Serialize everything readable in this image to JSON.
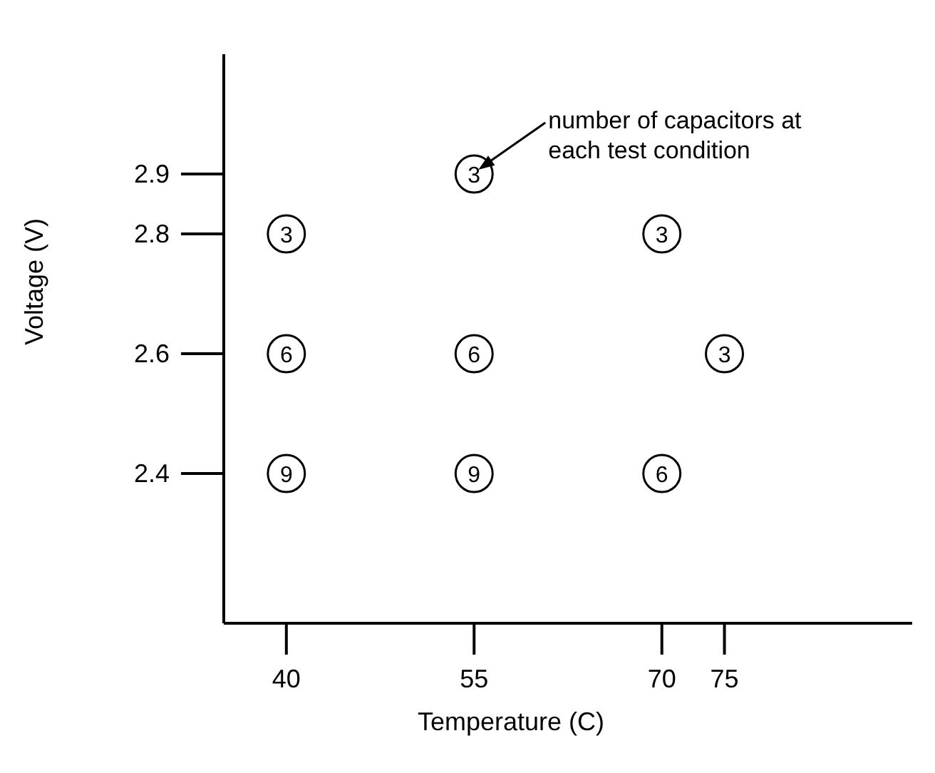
{
  "chart_data": {
    "type": "scatter",
    "xlabel": "Temperature (C)",
    "ylabel": "Voltage (V)",
    "x": [
      40,
      40,
      40,
      55,
      55,
      55,
      70,
      70,
      75
    ],
    "series": [
      {
        "color": "#000000",
        "values": [
          2.8,
          2.6,
          2.4,
          2.9,
          2.6,
          2.4,
          2.8,
          2.4,
          2.6
        ]
      }
    ],
    "xlim": [
      35,
      90
    ],
    "xticks": [
      40,
      55,
      70,
      75
    ],
    "ylim": [
      2.15,
      3.1
    ],
    "yticks": [
      2.4,
      2.6,
      2.8,
      2.9
    ],
    "marker": "circle",
    "grid": false,
    "annotations": [
      {
        "text": "3",
        "x": 40,
        "y": 2.8
      },
      {
        "text": "6",
        "x": 40,
        "y": 2.6
      },
      {
        "text": "9",
        "x": 40,
        "y": 2.4
      },
      {
        "text": "3",
        "x": 55,
        "y": 2.9
      },
      {
        "text": "6",
        "x": 55,
        "y": 2.6
      },
      {
        "text": "9",
        "x": 55,
        "y": 2.4
      },
      {
        "text": "3",
        "x": 70,
        "y": 2.8
      },
      {
        "text": "6",
        "x": 70,
        "y": 2.4
      },
      {
        "text": "3",
        "x": 75,
        "y": 2.6
      },
      "number of capacitors at\neach test condition"
    ]
  }
}
